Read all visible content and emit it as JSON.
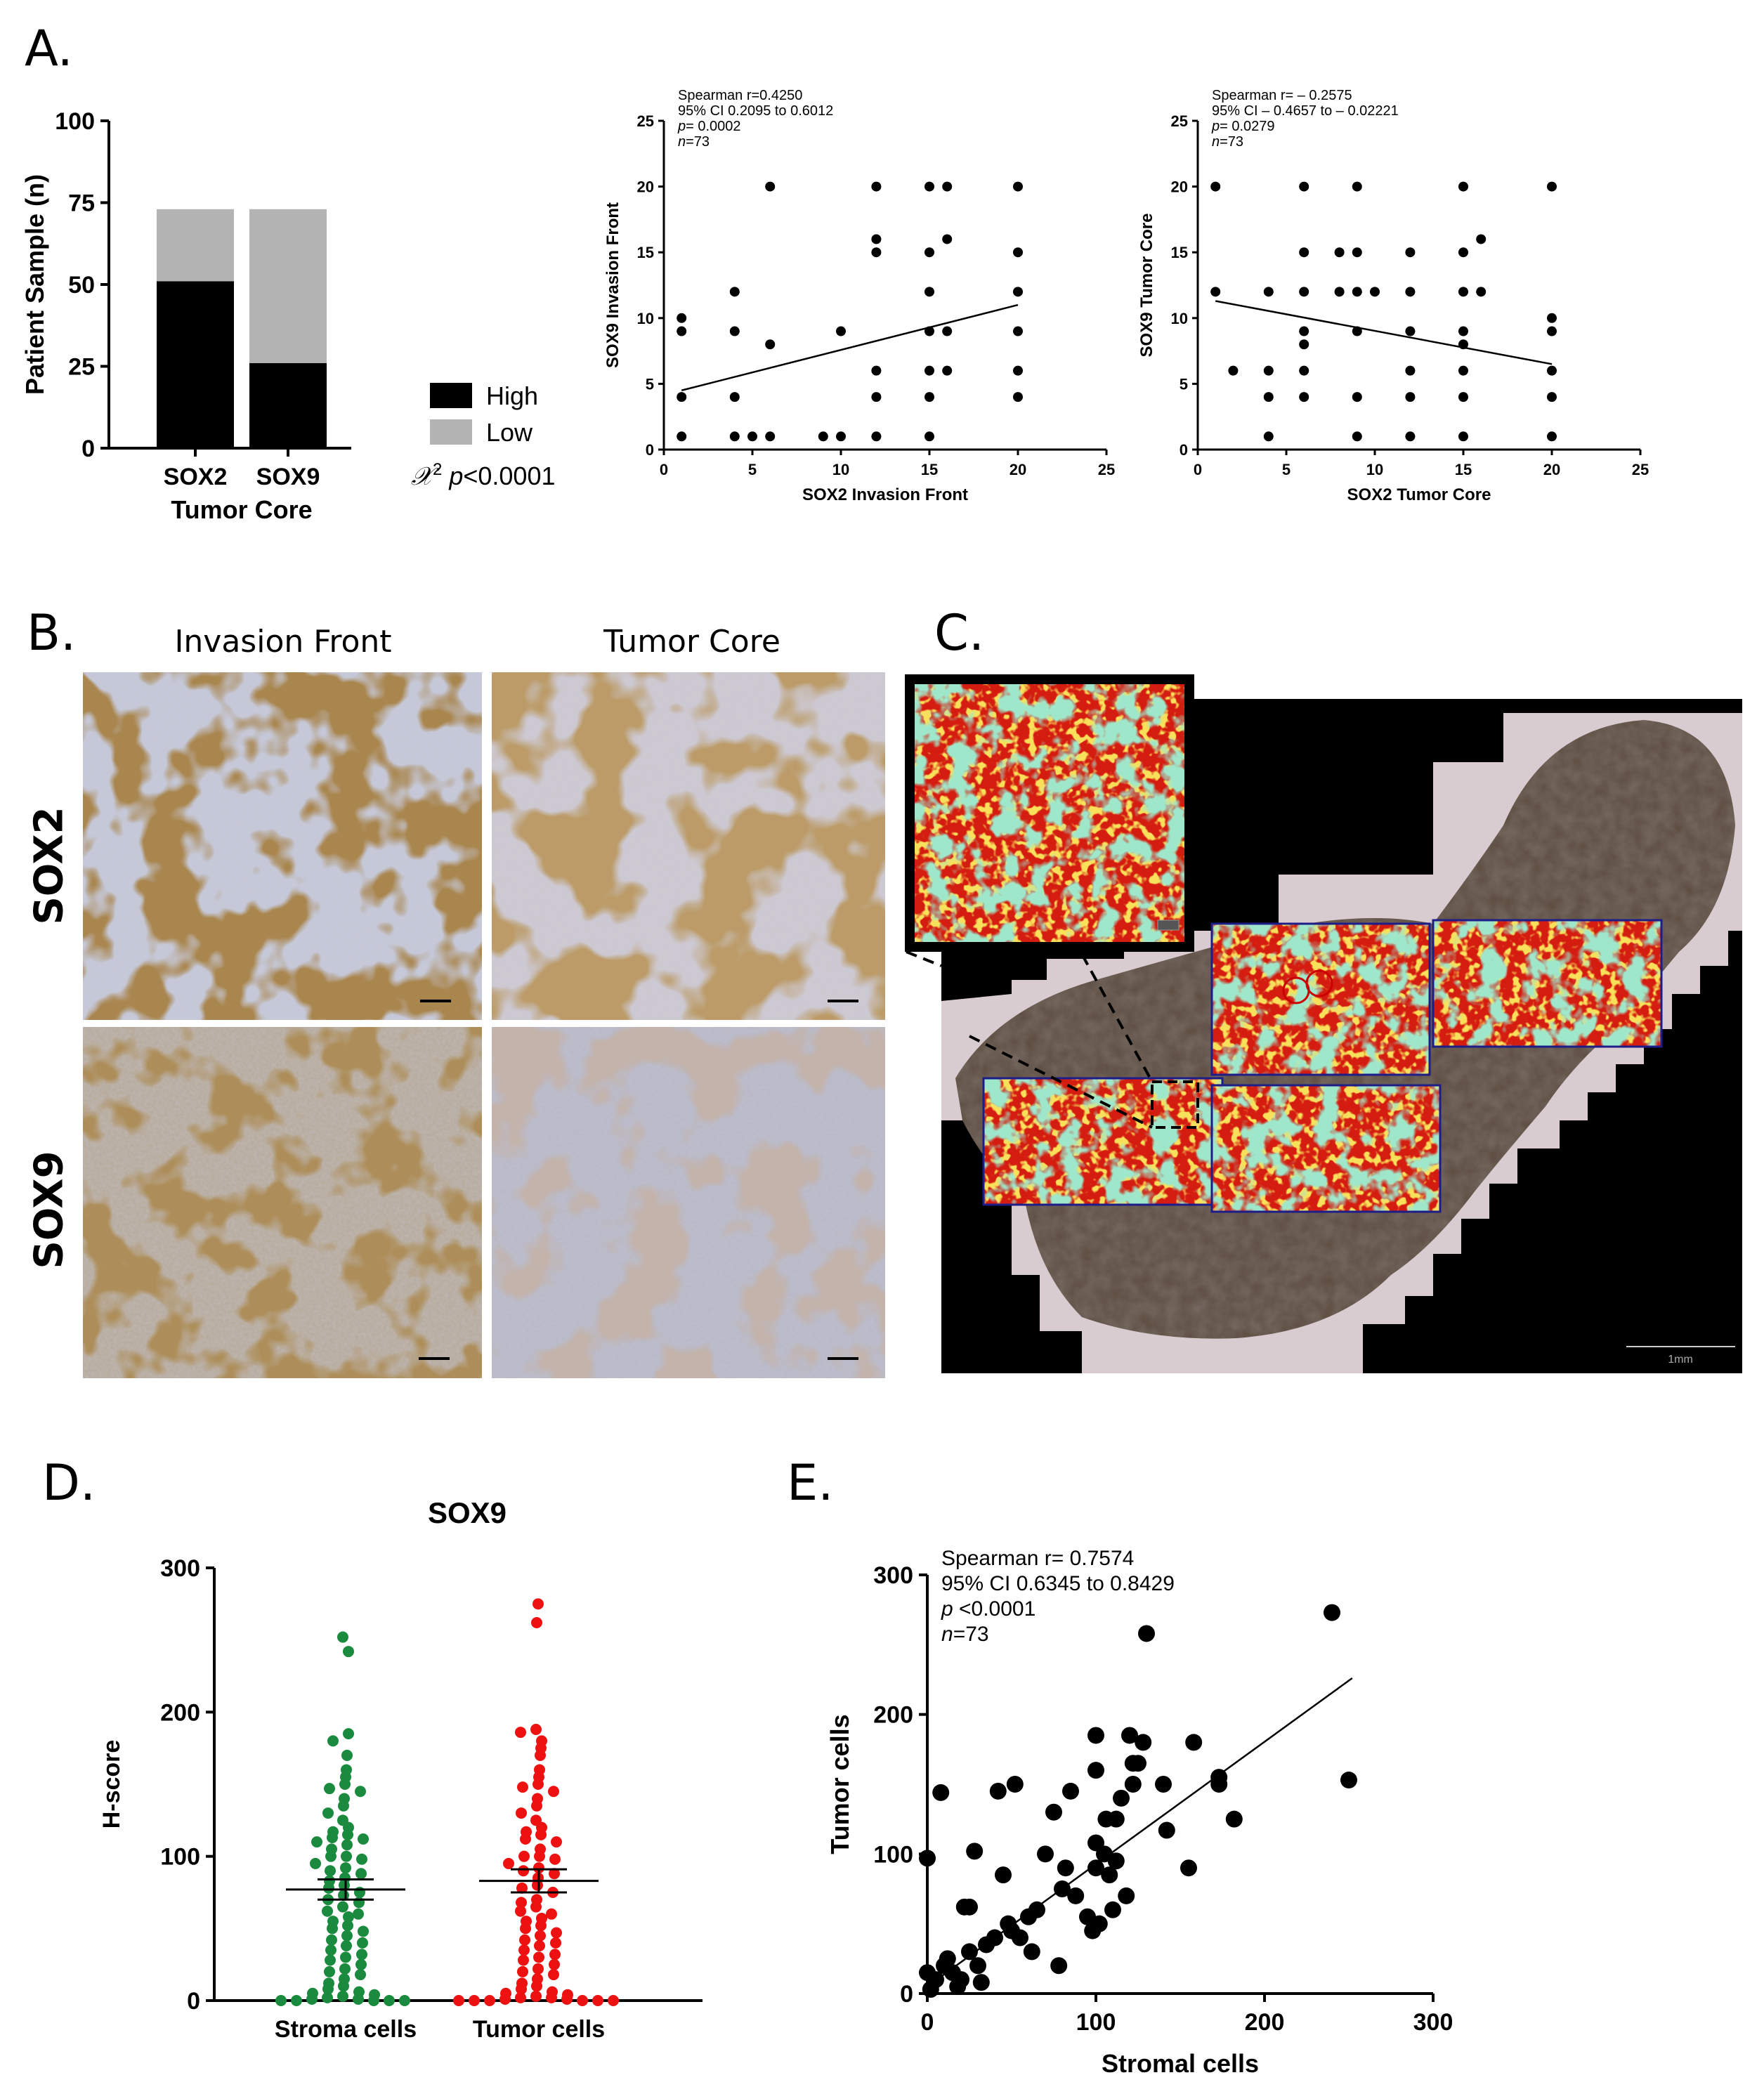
{
  "panels": {
    "a": "A.",
    "b": "B.",
    "c": "C.",
    "d": "D.",
    "e": "E."
  },
  "histology": {
    "col_invasion": "Invasion Front",
    "col_core": "Tumor Core",
    "row_sox2": "SOX2",
    "row_sox9": "SOX9",
    "scale_label": "1mm"
  },
  "colors": {
    "high": "#000000",
    "low": "#b3b3b3",
    "stroma": "#1a8a3e",
    "tumor": "#ee1111",
    "dab": "#6b4318",
    "hema": "#a9aec9"
  },
  "chart_data": [
    {
      "id": "a1",
      "type": "bar",
      "stacked": true,
      "categories": [
        "SOX2",
        "SOX9"
      ],
      "series": [
        {
          "name": "High",
          "values": [
            51,
            26
          ]
        },
        {
          "name": "Low",
          "values": [
            22,
            47
          ]
        }
      ],
      "xlabel": "Tumor Core",
      "ylabel": "Patient  Sample (n)",
      "ylim": [
        0,
        100
      ],
      "yticks": [
        "0",
        "25",
        "50",
        "75",
        "100"
      ],
      "legend": "right",
      "stat_prefix": "𝒳",
      "stat_sup": "2",
      "stat_p": "p",
      "stat_value": "<0.0001"
    },
    {
      "id": "a2",
      "type": "scatter",
      "xlabel": "SOX2 Invasion Front",
      "ylabel": "SOX9 Invasion Front",
      "xlim": [
        0,
        25
      ],
      "ylim": [
        0,
        25
      ],
      "xticks": [
        "0",
        "5",
        "10",
        "15",
        "20",
        "25"
      ],
      "yticks": [
        "0",
        "5",
        "10",
        "15",
        "20",
        "25"
      ],
      "annotation": [
        "Spearman r=0.4250",
        "95% CI 0.2095 to 0.6012",
        "p= 0.0002",
        "n=73"
      ],
      "fit": {
        "x": [
          1,
          20
        ],
        "y": [
          4.5,
          11
        ]
      },
      "points": [
        [
          1,
          10
        ],
        [
          1,
          9
        ],
        [
          1,
          4
        ],
        [
          1,
          1
        ],
        [
          4,
          12
        ],
        [
          4,
          9
        ],
        [
          4,
          4
        ],
        [
          4,
          1
        ],
        [
          5,
          1
        ],
        [
          6,
          20
        ],
        [
          6,
          8
        ],
        [
          6,
          1
        ],
        [
          9,
          1
        ],
        [
          10,
          9
        ],
        [
          10,
          1
        ],
        [
          12,
          20
        ],
        [
          12,
          16
        ],
        [
          12,
          15
        ],
        [
          12,
          6
        ],
        [
          12,
          4
        ],
        [
          12,
          1
        ],
        [
          15,
          20
        ],
        [
          15,
          15
        ],
        [
          15,
          12
        ],
        [
          15,
          9
        ],
        [
          15,
          6
        ],
        [
          15,
          4
        ],
        [
          15,
          1
        ],
        [
          16,
          20
        ],
        [
          16,
          16
        ],
        [
          16,
          9
        ],
        [
          16,
          6
        ],
        [
          20,
          20
        ],
        [
          20,
          15
        ],
        [
          20,
          12
        ],
        [
          20,
          9
        ],
        [
          20,
          6
        ],
        [
          20,
          4
        ]
      ]
    },
    {
      "id": "a3",
      "type": "scatter",
      "xlabel": "SOX2 Tumor Core",
      "ylabel": "SOX9 Tumor Core",
      "xlim": [
        0,
        25
      ],
      "ylim": [
        0,
        25
      ],
      "xticks": [
        "0",
        "5",
        "10",
        "15",
        "20",
        "25"
      ],
      "yticks": [
        "0",
        "5",
        "10",
        "15",
        "20",
        "25"
      ],
      "annotation": [
        "Spearman r=  – 0.2575",
        "95% CI – 0.4657 to – 0.02221",
        "p= 0.0279",
        "n=73"
      ],
      "fit": {
        "x": [
          1,
          20
        ],
        "y": [
          11.3,
          6.5
        ]
      },
      "points": [
        [
          1,
          20
        ],
        [
          1,
          12
        ],
        [
          2,
          6
        ],
        [
          4,
          12
        ],
        [
          4,
          6
        ],
        [
          4,
          4
        ],
        [
          4,
          1
        ],
        [
          6,
          20
        ],
        [
          6,
          15
        ],
        [
          6,
          12
        ],
        [
          6,
          9
        ],
        [
          6,
          8
        ],
        [
          6,
          6
        ],
        [
          6,
          4
        ],
        [
          8,
          15
        ],
        [
          8,
          12
        ],
        [
          9,
          15
        ],
        [
          9,
          12
        ],
        [
          9,
          9
        ],
        [
          9,
          4
        ],
        [
          9,
          1
        ],
        [
          9,
          20
        ],
        [
          10,
          12
        ],
        [
          12,
          15
        ],
        [
          12,
          12
        ],
        [
          12,
          9
        ],
        [
          12,
          6
        ],
        [
          12,
          4
        ],
        [
          12,
          1
        ],
        [
          15,
          20
        ],
        [
          15,
          15
        ],
        [
          15,
          12
        ],
        [
          15,
          9
        ],
        [
          15,
          8
        ],
        [
          15,
          6
        ],
        [
          15,
          4
        ],
        [
          15,
          1
        ],
        [
          16,
          16
        ],
        [
          16,
          12
        ],
        [
          20,
          20
        ],
        [
          20,
          10
        ],
        [
          20,
          9
        ],
        [
          20,
          6
        ],
        [
          20,
          4
        ],
        [
          20,
          1
        ]
      ]
    },
    {
      "id": "d",
      "type": "scatter",
      "title": "SOX9",
      "categories": [
        "Stroma cells",
        "Tumor cells"
      ],
      "ylabel": "H-score",
      "ylim": [
        0,
        300
      ],
      "yticks": [
        "0",
        "100",
        "200",
        "300"
      ],
      "mean": [
        77,
        83
      ],
      "sem": [
        7,
        8
      ],
      "series": [
        {
          "name": "Stroma cells",
          "values": [
            252,
            242,
            185,
            180,
            170,
            160,
            155,
            150,
            147,
            145,
            140,
            135,
            130,
            125,
            120,
            117,
            115,
            113,
            112,
            110,
            108,
            105,
            100,
            100,
            98,
            95,
            92,
            90,
            88,
            85,
            83,
            80,
            78,
            75,
            73,
            70,
            68,
            65,
            62,
            60,
            58,
            55,
            52,
            50,
            48,
            45,
            42,
            40,
            38,
            35,
            32,
            30,
            28,
            25,
            22,
            20,
            18,
            15,
            12,
            10,
            8,
            6,
            5,
            4,
            3,
            2,
            1,
            1,
            0,
            0,
            0,
            0,
            0
          ]
        },
        {
          "name": "Tumor cells",
          "values": [
            275,
            262,
            188,
            186,
            180,
            175,
            170,
            160,
            155,
            150,
            148,
            145,
            140,
            135,
            130,
            125,
            120,
            117,
            115,
            112,
            110,
            105,
            100,
            100,
            98,
            95,
            92,
            90,
            88,
            85,
            80,
            78,
            75,
            70,
            68,
            65,
            62,
            60,
            57,
            55,
            52,
            50,
            47,
            45,
            42,
            40,
            38,
            35,
            32,
            30,
            28,
            25,
            22,
            20,
            18,
            15,
            12,
            10,
            8,
            6,
            5,
            4,
            3,
            2,
            2,
            1,
            1,
            0,
            0,
            0,
            0,
            0,
            0
          ]
        }
      ]
    },
    {
      "id": "e",
      "type": "scatter",
      "xlabel": "Stromal cells",
      "ylabel": "Tumor cells",
      "xlim": [
        0,
        300
      ],
      "ylim": [
        0,
        300
      ],
      "xticks": [
        "0",
        "100",
        "200",
        "300"
      ],
      "yticks": [
        "0",
        "100",
        "200",
        "300"
      ],
      "annotation": [
        "Spearman r= 0.7574",
        "95% CI 0.6345 to 0.8429",
        "p <0.0001",
        "n=73"
      ],
      "fit": {
        "x": [
          0,
          252
        ],
        "y": [
          5,
          226
        ]
      },
      "points": [
        [
          0,
          97
        ],
        [
          0,
          15
        ],
        [
          2,
          3
        ],
        [
          5,
          10
        ],
        [
          8,
          144
        ],
        [
          10,
          20
        ],
        [
          12,
          25
        ],
        [
          15,
          15
        ],
        [
          18,
          5
        ],
        [
          20,
          10
        ],
        [
          22,
          62
        ],
        [
          25,
          62
        ],
        [
          25,
          30
        ],
        [
          28,
          102
        ],
        [
          30,
          20
        ],
        [
          32,
          8
        ],
        [
          35,
          35
        ],
        [
          40,
          40
        ],
        [
          42,
          145
        ],
        [
          45,
          85
        ],
        [
          48,
          50
        ],
        [
          50,
          45
        ],
        [
          52,
          150
        ],
        [
          55,
          40
        ],
        [
          60,
          55
        ],
        [
          62,
          30
        ],
        [
          65,
          60
        ],
        [
          70,
          100
        ],
        [
          75,
          130
        ],
        [
          78,
          20
        ],
        [
          80,
          75
        ],
        [
          82,
          90
        ],
        [
          85,
          145
        ],
        [
          88,
          70
        ],
        [
          95,
          55
        ],
        [
          98,
          45
        ],
        [
          100,
          185
        ],
        [
          100,
          160
        ],
        [
          100,
          108
        ],
        [
          100,
          90
        ],
        [
          102,
          50
        ],
        [
          105,
          100
        ],
        [
          106,
          125
        ],
        [
          108,
          85
        ],
        [
          110,
          60
        ],
        [
          112,
          95
        ],
        [
          112,
          125
        ],
        [
          115,
          140
        ],
        [
          118,
          70
        ],
        [
          120,
          185
        ],
        [
          122,
          165
        ],
        [
          122,
          150
        ],
        [
          125,
          165
        ],
        [
          128,
          180
        ],
        [
          130,
          258
        ],
        [
          140,
          150
        ],
        [
          142,
          117
        ],
        [
          155,
          90
        ],
        [
          158,
          180
        ],
        [
          173,
          155
        ],
        [
          173,
          150
        ],
        [
          182,
          125
        ],
        [
          240,
          273
        ],
        [
          250,
          153
        ]
      ]
    }
  ]
}
